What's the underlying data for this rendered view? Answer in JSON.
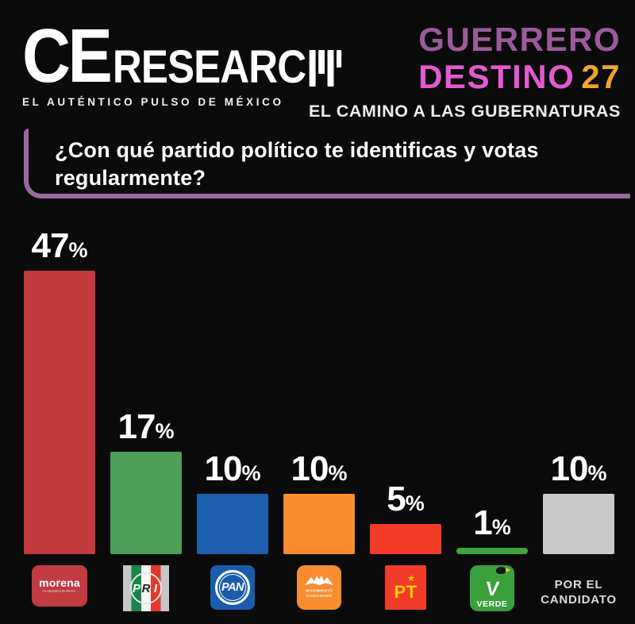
{
  "header": {
    "logo": {
      "ce": "CE",
      "research": "RESEARC",
      "tagline": "EL AUTÉNTICO PULSO DE MÉXICO"
    },
    "title_state": "GUERRERO",
    "title_series": "DESTINO",
    "title_number": "27",
    "subtitle": "EL CAMINO A LAS GUBERNATURAS"
  },
  "question": "¿Con qué partido político te identificas y votas regularmente?",
  "chart_data": {
    "type": "bar",
    "title": "¿Con qué partido político te identificas y votas regularmente?",
    "categories": [
      "MORENA",
      "PRI",
      "PAN",
      "MOVIMIENTO CIUDADANO",
      "PT",
      "VERDE",
      "POR EL CANDIDATO"
    ],
    "values": [
      47,
      17,
      10,
      10,
      5,
      1,
      10
    ],
    "values_text": [
      "47",
      "17",
      "10",
      "10",
      "5",
      "1",
      "10"
    ],
    "percent_sign": "%",
    "colors": [
      "#c23a3c",
      "#4d9e58",
      "#1d5fae",
      "#f78d2e",
      "#f43b28",
      "#3fa43c",
      "#c9c9c9"
    ],
    "xlabel": "",
    "ylabel": "",
    "ylim": [
      0,
      50
    ],
    "grid": false,
    "legend_position": "below-bars-as-party-logos"
  },
  "parties": {
    "morena": {
      "word": "morena",
      "sub": "La esperanza de México"
    },
    "pri": {
      "p": "P",
      "r": "R",
      "i": "I"
    },
    "pan": {
      "word": "PAN"
    },
    "mc": {
      "line1": "MOVIMIENTO",
      "line2": "CIUDADANO",
      "star": ""
    },
    "pt": {
      "word": "PT",
      "star": "★"
    },
    "verde": {
      "v": "V",
      "word": "VERDE"
    },
    "candidato": {
      "label": "POR EL CANDIDATO"
    }
  },
  "colors": {
    "background": "#0b0b0c",
    "state_purple": "#9d5a9b",
    "destino_magenta": "#e55ad0",
    "number_orange": "#f0a42c",
    "question_border_purple": "#9a689c",
    "text_white": "#ffffff"
  }
}
